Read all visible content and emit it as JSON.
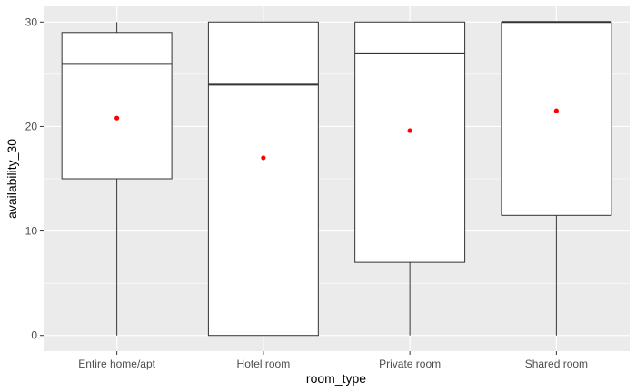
{
  "chart_data": {
    "type": "boxplot",
    "title": "",
    "xlabel": "room_type",
    "ylabel": "availability_30",
    "ylim": [
      -1.5,
      31.5
    ],
    "yticks": [
      0,
      10,
      20,
      30
    ],
    "categories": [
      "Entire home/apt",
      "Hotel room",
      "Private room",
      "Shared room"
    ],
    "boxes": [
      {
        "category": "Entire home/apt",
        "whisker_low": 0,
        "q1": 15,
        "median": 26,
        "q3": 29,
        "whisker_high": 30,
        "mean": 20.8
      },
      {
        "category": "Hotel room",
        "whisker_low": 0,
        "q1": 0,
        "median": 24,
        "q3": 30,
        "whisker_high": 30,
        "mean": 17
      },
      {
        "category": "Private room",
        "whisker_low": 0,
        "q1": 7,
        "median": 27,
        "q3": 30,
        "whisker_high": 30,
        "mean": 19.6
      },
      {
        "category": "Shared room",
        "whisker_low": 0,
        "q1": 11.5,
        "median": 30,
        "q3": 30,
        "whisker_high": 30,
        "mean": 21.5
      }
    ],
    "grid": true,
    "legend": "none",
    "colors": {
      "panel": "#ebebeb",
      "grid": "#ffffff",
      "box_fill": "#ffffff",
      "box_stroke": "#333333",
      "mean_point": "#ff0000"
    }
  }
}
